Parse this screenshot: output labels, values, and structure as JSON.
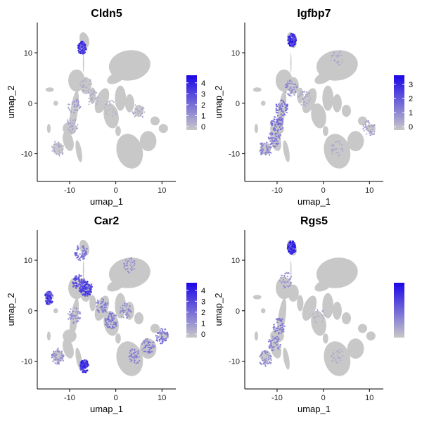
{
  "figure": {
    "layout": "2x2 feature plots",
    "point_color_low": "#C8C8C8",
    "point_color_high": "#1A06E8",
    "axis_color": "#000000",
    "background": "#FFFFFF"
  },
  "chart_data": [
    {
      "type": "scatter",
      "title": "Cldn5",
      "xlabel": "umap_1",
      "ylabel": "umap_2",
      "xticks": [
        -10,
        0,
        10
      ],
      "yticks": [
        -10,
        0,
        10
      ],
      "xlim": [
        -17,
        13
      ],
      "ylim": [
        -15.5,
        16
      ],
      "legend": {
        "position": "right",
        "ticks": [
          0,
          1,
          2,
          3,
          4
        ],
        "max": 4.5
      },
      "expression_regions": [
        {
          "x": -7.3,
          "y": 11,
          "level": 0.9
        },
        {
          "x": -9,
          "y": -0.5,
          "level": 0.3
        },
        {
          "x": -9.5,
          "y": -4.5,
          "level": 0.25
        },
        {
          "x": -12.5,
          "y": -9,
          "level": 0.2
        },
        {
          "x": -5,
          "y": 1,
          "level": 0.2
        },
        {
          "x": -1,
          "y": -1,
          "level": 0.15
        },
        {
          "x": 5,
          "y": -1.5,
          "level": 0.2
        },
        {
          "x": -6.5,
          "y": 3.5,
          "level": 0.2
        }
      ]
    },
    {
      "type": "scatter",
      "title": "Igfbp7",
      "xlabel": "umap_1",
      "ylabel": "umap_2",
      "xticks": [
        -10,
        0,
        10
      ],
      "yticks": [
        -10,
        0,
        10
      ],
      "xlim": [
        -17,
        13
      ],
      "ylim": [
        -15.5,
        16
      ],
      "legend": {
        "position": "right",
        "ticks": [
          0,
          1,
          2,
          3
        ],
        "max": 3.5
      },
      "expression_regions": [
        {
          "x": -6.8,
          "y": 12.5,
          "level": 1.0
        },
        {
          "x": -9,
          "y": -1,
          "level": 0.55
        },
        {
          "x": -10,
          "y": -4,
          "level": 0.6
        },
        {
          "x": -10.5,
          "y": -7,
          "level": 0.5
        },
        {
          "x": -12.5,
          "y": -9,
          "level": 0.45
        },
        {
          "x": -7,
          "y": 3,
          "level": 0.4
        },
        {
          "x": -4,
          "y": 1,
          "level": 0.25
        },
        {
          "x": 3,
          "y": 9,
          "level": 0.2
        },
        {
          "x": 3,
          "y": -9,
          "level": 0.2
        },
        {
          "x": 10,
          "y": -5,
          "level": 0.3
        }
      ]
    },
    {
      "type": "scatter",
      "title": "Car2",
      "xlabel": "umap_1",
      "ylabel": "umap_2",
      "xticks": [
        -10,
        0,
        10
      ],
      "yticks": [
        -10,
        0,
        10
      ],
      "xlim": [
        -17,
        13
      ],
      "ylim": [
        -15.5,
        16
      ],
      "legend": {
        "position": "right",
        "ticks": [
          0,
          1,
          2,
          3,
          4
        ],
        "max": 4.5
      },
      "expression_regions": [
        {
          "x": -7.5,
          "y": 11.5,
          "level": 0.55
        },
        {
          "x": -8,
          "y": 5.5,
          "level": 0.75
        },
        {
          "x": -6.5,
          "y": 4.5,
          "level": 0.85
        },
        {
          "x": -14.5,
          "y": 2.5,
          "level": 0.9
        },
        {
          "x": -6.8,
          "y": -11,
          "level": 0.95
        },
        {
          "x": -9,
          "y": -1,
          "level": 0.4
        },
        {
          "x": -1,
          "y": -2,
          "level": 0.55
        },
        {
          "x": -3,
          "y": 1,
          "level": 0.45
        },
        {
          "x": 2,
          "y": 0,
          "level": 0.4
        },
        {
          "x": 4,
          "y": -9,
          "level": 0.45
        },
        {
          "x": 7,
          "y": -7,
          "level": 0.5
        },
        {
          "x": 10,
          "y": -5,
          "level": 0.55
        },
        {
          "x": 3,
          "y": 9,
          "level": 0.35
        },
        {
          "x": -12.5,
          "y": -9,
          "level": 0.4
        }
      ]
    },
    {
      "type": "scatter",
      "title": "Rgs5",
      "xlabel": "umap_1",
      "ylabel": "umap_2",
      "xticks": [
        -10,
        0,
        10
      ],
      "yticks": [
        -10,
        0,
        10
      ],
      "xlim": [
        -17,
        13
      ],
      "ylim": [
        -15.5,
        16
      ],
      "legend": {
        "position": "right",
        "ticks": [],
        "max": 4
      },
      "expression_regions": [
        {
          "x": -6.8,
          "y": 12.5,
          "level": 1.0
        },
        {
          "x": -9.5,
          "y": -3,
          "level": 0.5
        },
        {
          "x": -10.5,
          "y": -6.5,
          "level": 0.45
        },
        {
          "x": -12.5,
          "y": -9.5,
          "level": 0.4
        },
        {
          "x": -8,
          "y": 6,
          "level": 0.35
        },
        {
          "x": -1,
          "y": -1,
          "level": 0.15
        },
        {
          "x": 3,
          "y": -9,
          "level": 0.2
        }
      ]
    }
  ]
}
